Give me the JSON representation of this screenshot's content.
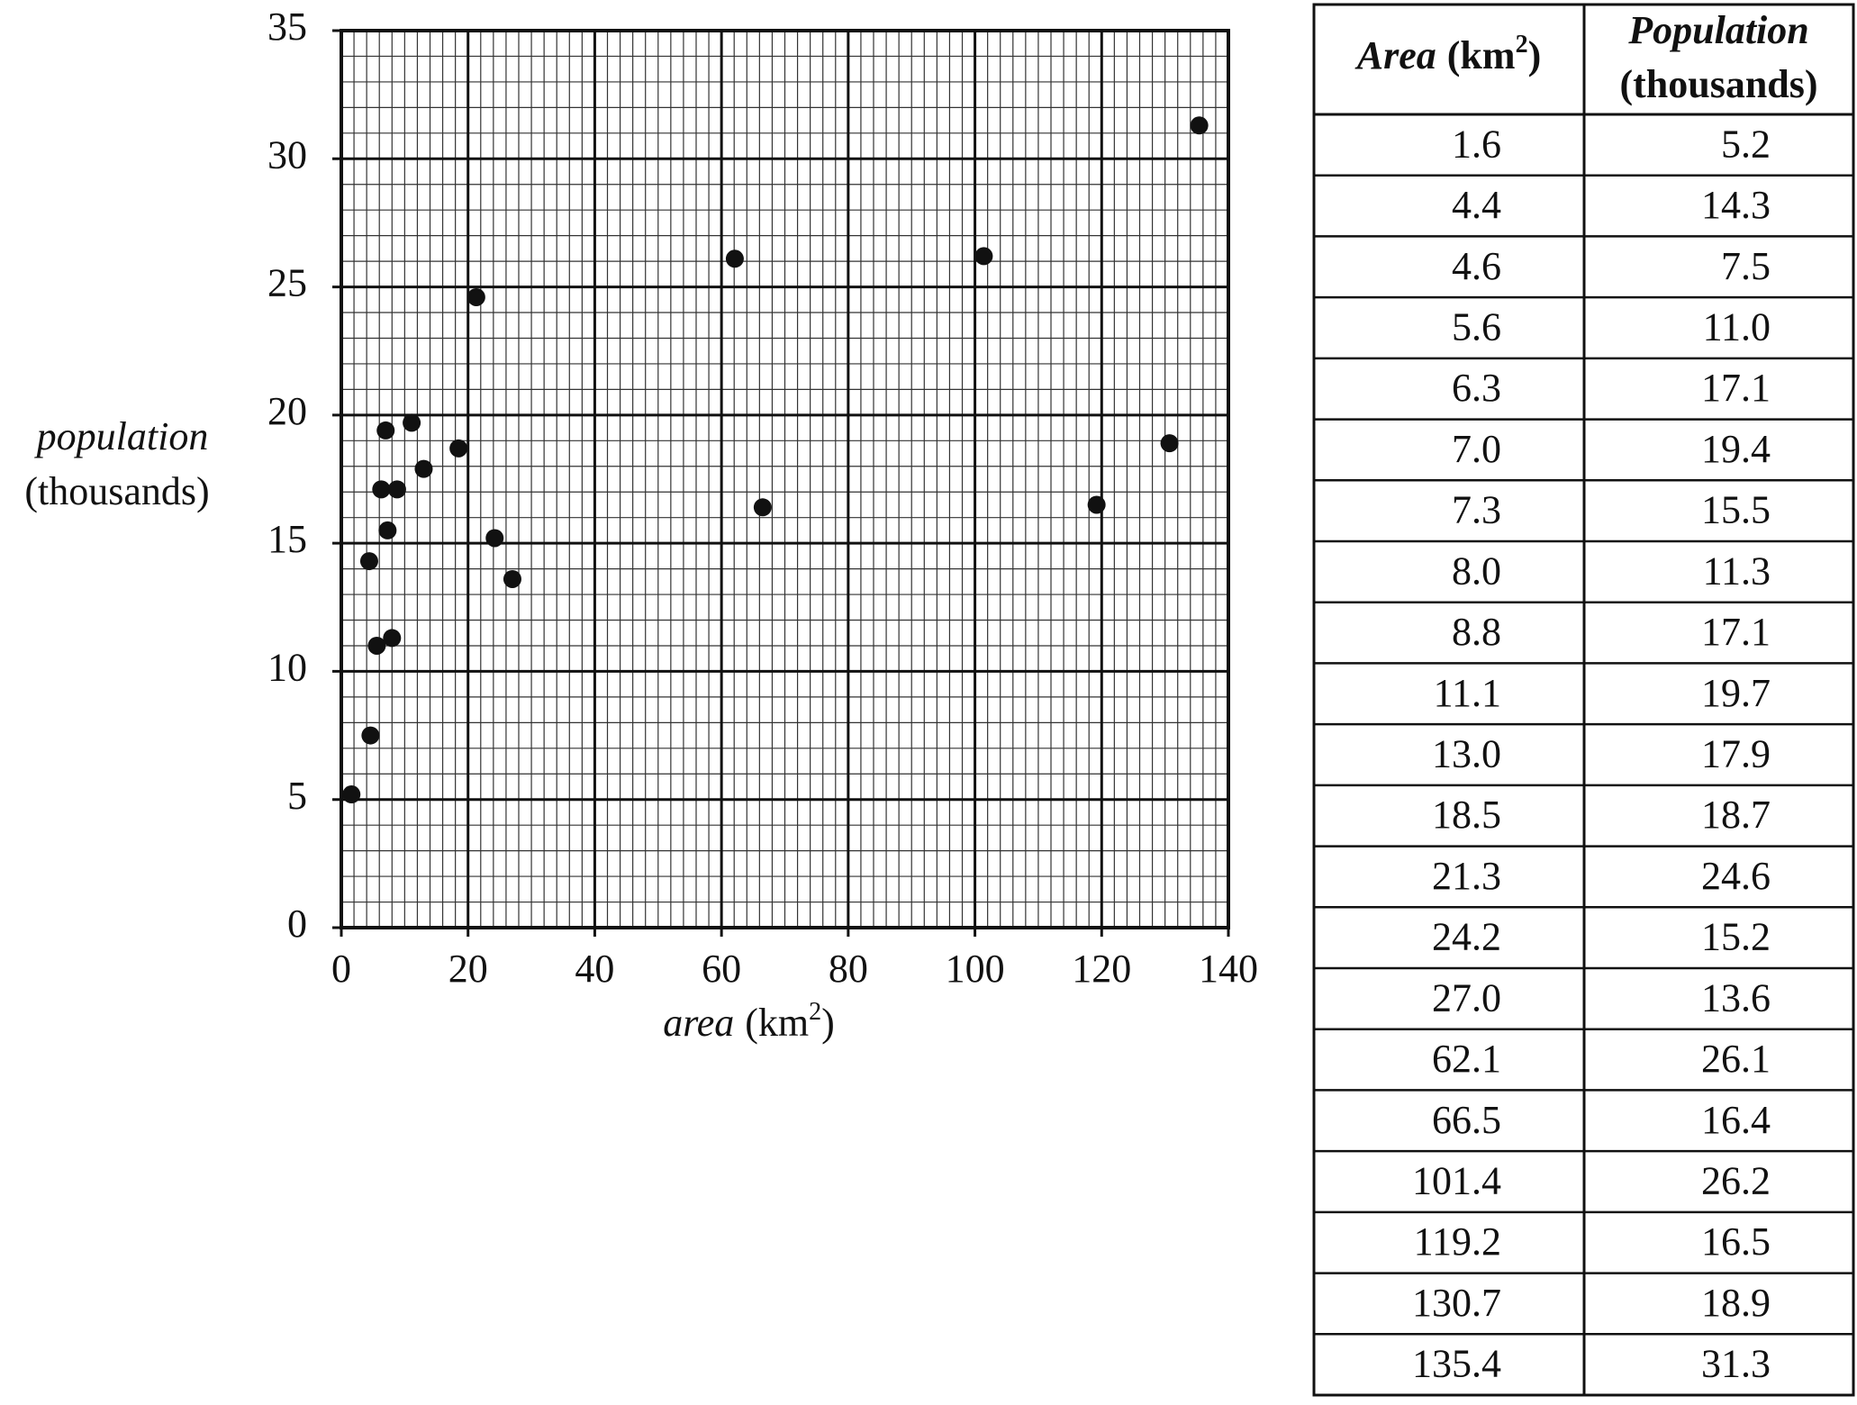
{
  "chart_data": {
    "type": "scatter",
    "xlabel": {
      "name": "area",
      "unit": "(km",
      "power": "2",
      "close": ")"
    },
    "ylabel": {
      "name": "population",
      "unit": "(thousands)"
    },
    "x": [
      1.6,
      4.4,
      4.6,
      5.6,
      6.3,
      7.0,
      7.3,
      8.0,
      8.8,
      11.1,
      13.0,
      18.5,
      21.3,
      24.2,
      27.0,
      62.1,
      66.5,
      101.4,
      119.2,
      130.7,
      135.4
    ],
    "values": [
      5.2,
      14.3,
      7.5,
      11.0,
      17.1,
      19.4,
      15.5,
      11.3,
      17.1,
      19.7,
      17.9,
      18.7,
      24.6,
      15.2,
      13.6,
      26.1,
      16.4,
      26.2,
      16.5,
      18.9,
      31.3
    ],
    "color": "#111111",
    "xlim": [
      0,
      140
    ],
    "xticks": [
      0,
      20,
      40,
      60,
      80,
      100,
      120,
      140
    ],
    "ylim": [
      0,
      35
    ],
    "yticks": [
      0,
      5,
      10,
      15,
      20,
      25,
      30,
      35
    ],
    "grid": true
  },
  "table": {
    "header": [
      {
        "name": "Area",
        "unit": "(km",
        "power": "2",
        "close": ")"
      },
      {
        "name": "Population",
        "unit": "(thousands)"
      }
    ],
    "rows": [
      [
        "1.6",
        "5.2"
      ],
      [
        "4.4",
        "14.3"
      ],
      [
        "4.6",
        "7.5"
      ],
      [
        "5.6",
        "11.0"
      ],
      [
        "6.3",
        "17.1"
      ],
      [
        "7.0",
        "19.4"
      ],
      [
        "7.3",
        "15.5"
      ],
      [
        "8.0",
        "11.3"
      ],
      [
        "8.8",
        "17.1"
      ],
      [
        "11.1",
        "19.7"
      ],
      [
        "13.0",
        "17.9"
      ],
      [
        "18.5",
        "18.7"
      ],
      [
        "21.3",
        "24.6"
      ],
      [
        "24.2",
        "15.2"
      ],
      [
        "27.0",
        "13.6"
      ],
      [
        "62.1",
        "26.1"
      ],
      [
        "66.5",
        "16.4"
      ],
      [
        "101.4",
        "26.2"
      ],
      [
        "119.2",
        "16.5"
      ],
      [
        "130.7",
        "18.9"
      ],
      [
        "135.4",
        "31.3"
      ]
    ]
  }
}
